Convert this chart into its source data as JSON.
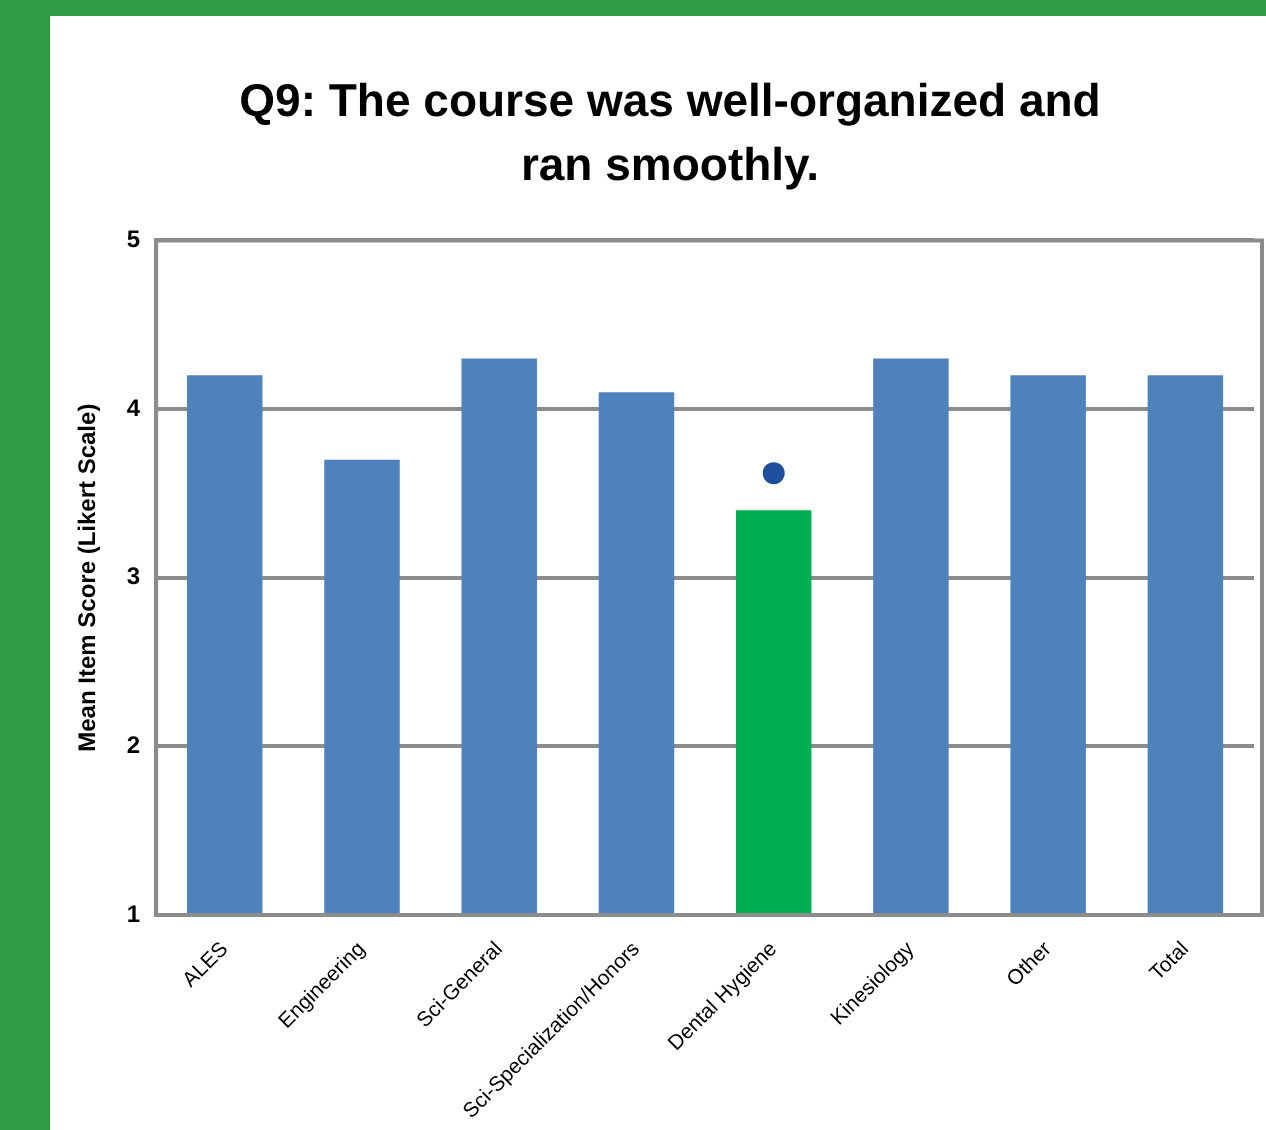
{
  "chart_data": {
    "type": "bar",
    "title": "Q9: The course was well-organized and ran smoothly.",
    "ylabel": "Mean Item Score (Likert Scale)",
    "categories": [
      "ALES",
      "Engineering",
      "Sci-General",
      "Sci-Specialization/Honors",
      "Dental Hygiene",
      "Kinesiology",
      "Other",
      "Total"
    ],
    "series": [
      {
        "colors": [
          "#4f81bd",
          "#4f81bd",
          "#4f81bd",
          "#4f81bd",
          "#00b050",
          "#4f81bd",
          "#4f81bd",
          "#4f81bd"
        ],
        "values": [
          4.2,
          3.7,
          4.3,
          4.1,
          3.4,
          4.3,
          4.2,
          4.2
        ]
      },
      {
        "type": "scatter",
        "color": "#1f4e9c",
        "x": [
          "Dental Hygiene"
        ],
        "values": [
          3.62
        ]
      }
    ],
    "ylim": [
      1,
      5
    ],
    "yticks": [
      1,
      2,
      3,
      4,
      5
    ],
    "grid": "y",
    "legend": false,
    "marker": "circle"
  }
}
